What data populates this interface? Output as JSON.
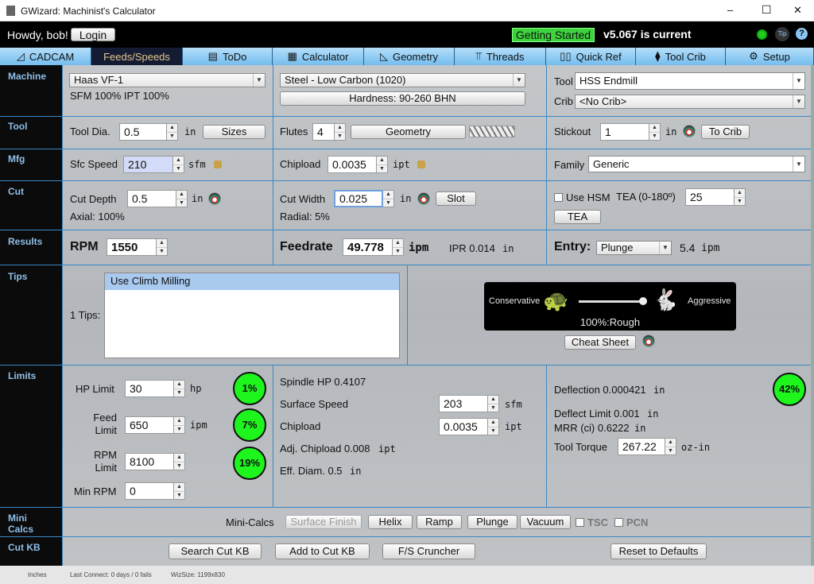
{
  "window": {
    "title": "GWizard: Machinist's Calculator",
    "minimize": "–",
    "maximize": "☐",
    "close": "✕"
  },
  "topbar": {
    "greeting": "Howdy, bob!",
    "login": "Login",
    "getting_started": "Getting Started",
    "version": "v5.067 is current",
    "tip": "Tip",
    "help": "?"
  },
  "tabs": [
    {
      "label": "CADCAM",
      "icon": "set-square-icon",
      "glyph": "◿"
    },
    {
      "label": "Feeds/Speeds",
      "active": true
    },
    {
      "label": "ToDo",
      "icon": "checklist-icon",
      "glyph": "▤"
    },
    {
      "label": "Calculator",
      "icon": "calculator-icon",
      "glyph": "▦"
    },
    {
      "label": "Geometry",
      "icon": "triangle-ruler-icon",
      "glyph": "◺"
    },
    {
      "label": "Threads",
      "icon": "tap-icon",
      "glyph": "⫪"
    },
    {
      "label": "Quick Ref",
      "icon": "book-icon",
      "glyph": "▯▯"
    },
    {
      "label": "Tool Crib",
      "icon": "endmill-icon",
      "glyph": "⧫"
    },
    {
      "label": "Setup",
      "icon": "gear-icon",
      "glyph": "⚙"
    }
  ],
  "row_labels": {
    "machine": "Machine",
    "tool": "Tool",
    "mfg": "Mfg",
    "cut": "Cut",
    "results": "Results",
    "tips": "Tips",
    "limits": "Limits",
    "mini_calcs": "Mini Calcs",
    "cut_kb": "Cut KB"
  },
  "machine": {
    "machine": "Haas VF-1",
    "factors": "SFM 100% IPT 100%",
    "material": "Steel - Low Carbon (1020)",
    "hardness": "Hardness: 90-260 BHN",
    "tool_label": "Tool",
    "tool": "HSS Endmill",
    "crib_label": "Crib",
    "crib": "<No Crib>"
  },
  "tool": {
    "dia_label": "Tool Dia.",
    "dia": "0.5",
    "dia_unit": "in",
    "sizes": "Sizes",
    "flutes_label": "Flutes",
    "flutes": "4",
    "geometry": "Geometry",
    "stickout_label": "Stickout",
    "stickout": "1",
    "stickout_unit": "in",
    "to_crib": "To Crib"
  },
  "mfg": {
    "sfc_label": "Sfc Speed",
    "sfc": "210",
    "sfc_unit": "sfm",
    "chip_label": "Chipload",
    "chip": "0.0035",
    "chip_unit": "ipt",
    "family_label": "Family",
    "family": "Generic"
  },
  "cut": {
    "depth_label": "Cut Depth",
    "depth": "0.5",
    "depth_unit": "in",
    "axial": "Axial: 100%",
    "width_label": "Cut Width",
    "width": "0.025",
    "width_unit": "in",
    "slot": "Slot",
    "radial": "Radial: 5%",
    "hsm_label": "Use HSM",
    "hsm_checked": false,
    "tea_label": "TEA (0-180º)",
    "tea": "25",
    "tea_button": "TEA"
  },
  "results": {
    "rpm_label": "RPM",
    "rpm": "1550",
    "feed_label": "Feedrate",
    "feed": "49.778",
    "feed_unit": "ipm",
    "ipr": "IPR 0.014",
    "ipr_unit": "in",
    "entry_label": "Entry:",
    "entry": "Plunge",
    "entry_rate": "5.4",
    "entry_unit": "ipm"
  },
  "tips": {
    "count_label": "1 Tips:",
    "items": [
      "Use Climb Milling"
    ],
    "conservative": "Conservative",
    "aggressive": "Aggressive",
    "slider_value": 100,
    "slider_text": "100%:Rough",
    "cheat_sheet": "Cheat Sheet"
  },
  "limits": {
    "hp_label": "HP Limit",
    "hp": "30",
    "hp_unit": "hp",
    "hp_pct": "1%",
    "feed_label1": "Feed",
    "feed_label2": "Limit",
    "feed": "650",
    "feed_unit": "ipm",
    "feed_pct": "7%",
    "rpm_label1": "RPM",
    "rpm_label2": "Limit",
    "rpm": "8100",
    "rpm_pct": "19%",
    "minrpm_label": "Min RPM",
    "minrpm": "0",
    "spindle_hp": "Spindle HP 0.4107",
    "ss_label": "Surface Speed",
    "ss": "203",
    "ss_unit": "sfm",
    "cl_label": "Chipload",
    "cl": "0.0035",
    "cl_unit": "ipt",
    "adj_chip": "Adj. Chipload 0.008",
    "adj_chip_unit": "ipt",
    "eff_diam": "Eff. Diam. 0.5",
    "eff_diam_unit": "in",
    "deflection": "Deflection 0.000421",
    "deflection_unit": "in",
    "deflection_pct": "42%",
    "deflect_limit": "Deflect Limit 0.001",
    "deflect_limit_unit": "in",
    "mrr": "MRR (ci) 0.6222",
    "mrr_unit": "in",
    "torque_label": "Tool Torque",
    "torque": "267.22",
    "torque_unit": "oz-in"
  },
  "minicalcs": {
    "label": "Mini-Calcs",
    "buttons": [
      "Surface Finish",
      "Helix",
      "Ramp",
      "Plunge",
      "Vacuum"
    ],
    "tsc": "TSC",
    "pcn": "PCN"
  },
  "cutkb": {
    "search": "Search Cut KB",
    "add": "Add to Cut KB",
    "cruncher": "F/S Cruncher",
    "reset": "Reset to Defaults"
  },
  "status": {
    "units": "Inches",
    "last_connect": "Last Connect: 0 days / 0 fails",
    "wizsize": "WizSize: 1199x830"
  },
  "colors": {
    "accent": "#3b87c4",
    "gauge": "#1df51d",
    "getting_started": "#3cd33c",
    "tab_active": "#141c34"
  }
}
